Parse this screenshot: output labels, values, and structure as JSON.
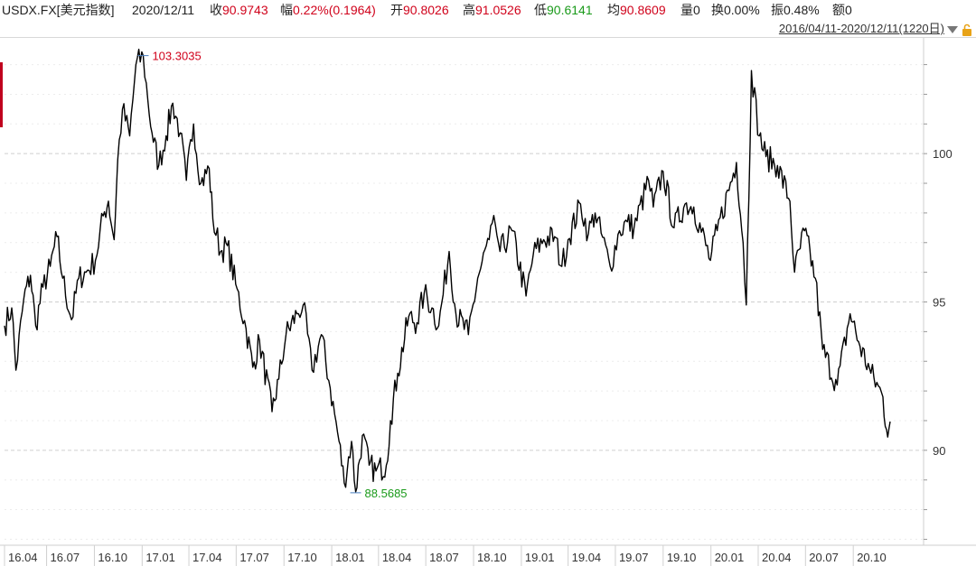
{
  "header": {
    "symbol": "USDX.FX[美元指数]",
    "date": "2020/12/11",
    "close_label": "收",
    "close_value": "90.9743",
    "change_label": "幅",
    "change_value": "0.22%(0.1964)",
    "open_label": "开",
    "open_value": "90.8026",
    "high_label": "高",
    "high_value": "91.0526",
    "low_label": "低",
    "low_value": "90.6141",
    "avg_label": "均",
    "avg_value": "90.8609",
    "volume_label": "量",
    "volume_value": "0",
    "turnover_label": "换",
    "turnover_value": "0.00%",
    "amplitude_label": "振",
    "amplitude_value": "0.48%",
    "amount_label": "额",
    "amount_value": "0",
    "range_text": "2016/04/11-2020/12/11(1220日)"
  },
  "icons": {
    "dropdown": "chevron-down-icon",
    "lock": "lock-icon"
  },
  "colors": {
    "up": "#d0021b",
    "down": "#1a9a1a",
    "line": "#000000",
    "grid": "#d9d9d9"
  },
  "chart_data": {
    "type": "line",
    "title": "",
    "xlabel": "",
    "ylabel": "",
    "ylim": [
      86.8,
      103.9
    ],
    "y_ticks": [
      90,
      95,
      100
    ],
    "grid": true,
    "x_tick_labels": [
      "16.04",
      "16.07",
      "16.10",
      "17.01",
      "17.04",
      "17.07",
      "17.10",
      "18.01",
      "18.04",
      "18.07",
      "18.10",
      "19.01",
      "19.04",
      "19.07",
      "19.10",
      "20.01",
      "20.04",
      "20.07",
      "20.10"
    ],
    "annotations": [
      {
        "label": "103.3035",
        "x": "2017-01-03",
        "y": 103.3035,
        "kind": "max"
      },
      {
        "label": "88.5685",
        "x": "2018-02-16",
        "y": 88.5685,
        "kind": "min"
      }
    ],
    "series": [
      {
        "points": [
          [
            "2016-04-11",
            94.2
          ],
          [
            "2016-04-25",
            94.8
          ],
          [
            "2016-05-03",
            92.7
          ],
          [
            "2016-05-18",
            95.1
          ],
          [
            "2016-05-31",
            95.9
          ],
          [
            "2016-06-10",
            94.2
          ],
          [
            "2016-06-24",
            95.5
          ],
          [
            "2016-07-08",
            96.2
          ],
          [
            "2016-07-21",
            97.2
          ],
          [
            "2016-08-01",
            95.8
          ],
          [
            "2016-08-18",
            94.4
          ],
          [
            "2016-09-01",
            95.8
          ],
          [
            "2016-09-15",
            96.0
          ],
          [
            "2016-10-03",
            96.4
          ],
          [
            "2016-10-18",
            97.9
          ],
          [
            "2016-10-28",
            98.4
          ],
          [
            "2016-11-08",
            97.1
          ],
          [
            "2016-11-15",
            99.8
          ],
          [
            "2016-11-24",
            101.5
          ],
          [
            "2016-12-08",
            100.6
          ],
          [
            "2016-12-20",
            103.0
          ],
          [
            "2017-01-03",
            103.3
          ],
          [
            "2017-01-12",
            101.8
          ],
          [
            "2017-01-20",
            100.7
          ],
          [
            "2017-02-02",
            99.6
          ],
          [
            "2017-02-16",
            100.6
          ],
          [
            "2017-03-01",
            101.7
          ],
          [
            "2017-03-15",
            100.7
          ],
          [
            "2017-03-27",
            99.1
          ],
          [
            "2017-04-10",
            101.0
          ],
          [
            "2017-04-24",
            99.0
          ],
          [
            "2017-05-10",
            99.5
          ],
          [
            "2017-05-17",
            97.8
          ],
          [
            "2017-06-01",
            96.7
          ],
          [
            "2017-06-14",
            96.9
          ],
          [
            "2017-06-30",
            95.6
          ],
          [
            "2017-07-20",
            94.1
          ],
          [
            "2017-08-02",
            92.8
          ],
          [
            "2017-08-15",
            93.7
          ],
          [
            "2017-09-08",
            91.3
          ],
          [
            "2017-09-21",
            92.4
          ],
          [
            "2017-10-05",
            93.9
          ],
          [
            "2017-10-26",
            94.6
          ],
          [
            "2017-11-07",
            94.9
          ],
          [
            "2017-11-24",
            92.7
          ],
          [
            "2017-12-12",
            93.9
          ],
          [
            "2017-12-29",
            92.1
          ],
          [
            "2018-01-15",
            90.3
          ],
          [
            "2018-01-25",
            88.9
          ],
          [
            "2018-02-08",
            90.3
          ],
          [
            "2018-02-16",
            88.6
          ],
          [
            "2018-03-01",
            90.5
          ],
          [
            "2018-03-14",
            89.5
          ],
          [
            "2018-03-27",
            89.3
          ],
          [
            "2018-04-16",
            89.5
          ],
          [
            "2018-04-24",
            91.0
          ],
          [
            "2018-05-08",
            92.6
          ],
          [
            "2018-05-29",
            94.5
          ],
          [
            "2018-06-14",
            94.3
          ],
          [
            "2018-06-28",
            95.3
          ],
          [
            "2018-07-13",
            94.8
          ],
          [
            "2018-07-26",
            94.2
          ],
          [
            "2018-08-15",
            96.7
          ],
          [
            "2018-08-28",
            94.6
          ],
          [
            "2018-09-21",
            93.9
          ],
          [
            "2018-10-09",
            95.8
          ],
          [
            "2018-10-31",
            97.1
          ],
          [
            "2018-11-12",
            97.6
          ],
          [
            "2018-11-21",
            96.7
          ],
          [
            "2018-12-14",
            97.4
          ],
          [
            "2019-01-10",
            95.2
          ],
          [
            "2019-01-24",
            96.6
          ],
          [
            "2019-02-13",
            97.1
          ],
          [
            "2019-03-06",
            97.2
          ],
          [
            "2019-03-20",
            96.2
          ],
          [
            "2019-04-01",
            97.1
          ],
          [
            "2019-04-25",
            98.3
          ],
          [
            "2019-05-10",
            97.3
          ],
          [
            "2019-05-23",
            98.0
          ],
          [
            "2019-06-21",
            96.2
          ],
          [
            "2019-07-09",
            97.4
          ],
          [
            "2019-07-24",
            97.7
          ],
          [
            "2019-08-06",
            97.5
          ],
          [
            "2019-09-03",
            99.1
          ],
          [
            "2019-09-12",
            98.2
          ],
          [
            "2019-10-01",
            99.4
          ],
          [
            "2019-10-22",
            97.5
          ],
          [
            "2019-11-12",
            98.3
          ],
          [
            "2019-11-29",
            98.2
          ],
          [
            "2019-12-31",
            96.4
          ],
          [
            "2020-01-13",
            97.4
          ],
          [
            "2020-02-19",
            99.7
          ],
          [
            "2020-03-03",
            97.0
          ],
          [
            "2020-03-09",
            94.9
          ],
          [
            "2020-03-19",
            102.8
          ],
          [
            "2020-04-03",
            100.6
          ],
          [
            "2020-04-16",
            99.9
          ],
          [
            "2020-05-08",
            99.6
          ],
          [
            "2020-06-01",
            98.4
          ],
          [
            "2020-06-10",
            96.0
          ],
          [
            "2020-06-29",
            97.4
          ],
          [
            "2020-07-20",
            95.8
          ],
          [
            "2020-08-03",
            93.4
          ],
          [
            "2020-08-31",
            92.2
          ],
          [
            "2020-09-25",
            94.6
          ],
          [
            "2020-10-14",
            93.5
          ],
          [
            "2020-11-04",
            92.6
          ],
          [
            "2020-11-27",
            91.8
          ],
          [
            "2020-12-04",
            90.7
          ],
          [
            "2020-12-11",
            90.97
          ]
        ]
      }
    ]
  }
}
